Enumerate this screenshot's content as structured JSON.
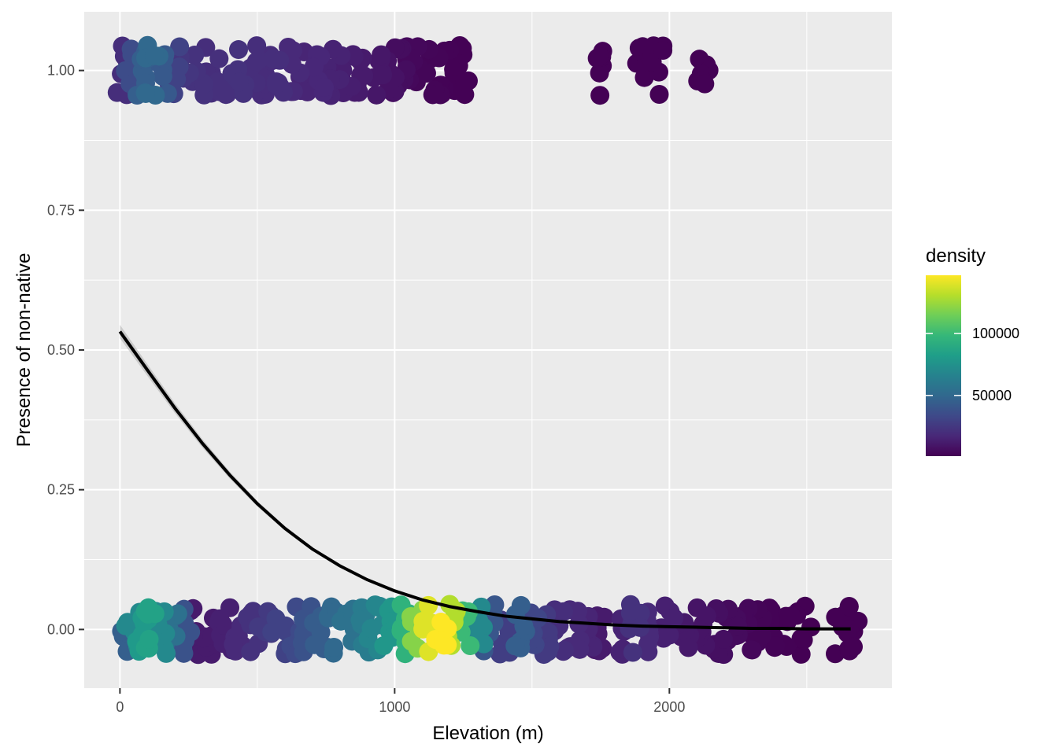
{
  "chart_data": {
    "type": "scatter",
    "title": "",
    "xlabel": "Elevation (m)",
    "ylabel": "Presence of non-native",
    "xlim": [
      -130,
      2810
    ],
    "ylim": [
      -0.105,
      1.105
    ],
    "x_ticks": [
      {
        "value": 0,
        "label": "0"
      },
      {
        "value": 1000,
        "label": "1000"
      },
      {
        "value": 2000,
        "label": "2000"
      }
    ],
    "y_ticks": [
      {
        "value": 0,
        "label": "0.00"
      },
      {
        "value": 0.25,
        "label": "0.25"
      },
      {
        "value": 0.5,
        "label": "0.50"
      },
      {
        "value": 0.75,
        "label": "0.75"
      },
      {
        "value": 1,
        "label": "1.00"
      }
    ],
    "grid": true,
    "legend": {
      "title": "density",
      "position": "right",
      "scale": "viridis",
      "range": [
        1000,
        147000
      ],
      "ticks": [
        {
          "value": 50000,
          "label": "50000"
        },
        {
          "value": 100000,
          "label": "100000"
        }
      ]
    },
    "points_present": [
      {
        "x": 15,
        "density": 20000
      },
      {
        "x": 45,
        "density": 35000
      },
      {
        "x": 80,
        "density": 45000
      },
      {
        "x": 115,
        "density": 50000
      },
      {
        "x": 150,
        "density": 42000
      },
      {
        "x": 190,
        "density": 30000
      },
      {
        "x": 230,
        "density": 24000
      },
      {
        "x": 280,
        "density": 22000
      },
      {
        "x": 330,
        "density": 20000
      },
      {
        "x": 380,
        "density": 21000
      },
      {
        "x": 430,
        "density": 22000
      },
      {
        "x": 480,
        "density": 20000
      },
      {
        "x": 530,
        "density": 19000
      },
      {
        "x": 580,
        "density": 20000
      },
      {
        "x": 630,
        "density": 18000
      },
      {
        "x": 680,
        "density": 16000
      },
      {
        "x": 730,
        "density": 17000
      },
      {
        "x": 780,
        "density": 15000
      },
      {
        "x": 830,
        "density": 13000
      },
      {
        "x": 880,
        "density": 12000
      },
      {
        "x": 930,
        "density": 10000
      },
      {
        "x": 980,
        "density": 8000
      },
      {
        "x": 1020,
        "density": 6000
      },
      {
        "x": 1060,
        "density": 4000
      },
      {
        "x": 1100,
        "density": 3000
      },
      {
        "x": 1140,
        "density": 2500
      },
      {
        "x": 1180,
        "density": 2000
      },
      {
        "x": 1225,
        "density": 1500
      },
      {
        "x": 1250,
        "density": 1500
      },
      {
        "x": 1750,
        "density": 1500
      },
      {
        "x": 1905,
        "density": 1500
      },
      {
        "x": 1950,
        "density": 1500
      },
      {
        "x": 2130,
        "density": 1500
      }
    ],
    "points_absent": [
      {
        "x": 15,
        "density": 45000
      },
      {
        "x": 45,
        "density": 70000
      },
      {
        "x": 80,
        "density": 80000
      },
      {
        "x": 115,
        "density": 85000
      },
      {
        "x": 150,
        "density": 70000
      },
      {
        "x": 190,
        "density": 55000
      },
      {
        "x": 230,
        "density": 38000
      },
      {
        "x": 280,
        "density": 12000
      },
      {
        "x": 330,
        "density": 12000
      },
      {
        "x": 380,
        "density": 14000
      },
      {
        "x": 430,
        "density": 18000
      },
      {
        "x": 480,
        "density": 22000
      },
      {
        "x": 530,
        "density": 26000
      },
      {
        "x": 580,
        "density": 30000
      },
      {
        "x": 630,
        "density": 34000
      },
      {
        "x": 680,
        "density": 38000
      },
      {
        "x": 730,
        "density": 44000
      },
      {
        "x": 780,
        "density": 50000
      },
      {
        "x": 830,
        "density": 56000
      },
      {
        "x": 880,
        "density": 62000
      },
      {
        "x": 930,
        "density": 68000
      },
      {
        "x": 980,
        "density": 78000
      },
      {
        "x": 1030,
        "density": 95000
      },
      {
        "x": 1080,
        "density": 120000
      },
      {
        "x": 1130,
        "density": 140000
      },
      {
        "x": 1170,
        "density": 147000
      },
      {
        "x": 1210,
        "density": 130000
      },
      {
        "x": 1250,
        "density": 100000
      },
      {
        "x": 1300,
        "density": 70000
      },
      {
        "x": 1350,
        "density": 40000
      },
      {
        "x": 1400,
        "density": 28000
      },
      {
        "x": 1450,
        "density": 45000
      },
      {
        "x": 1500,
        "density": 32000
      },
      {
        "x": 1550,
        "density": 26000
      },
      {
        "x": 1600,
        "density": 20000
      },
      {
        "x": 1650,
        "density": 18000
      },
      {
        "x": 1700,
        "density": 16000
      },
      {
        "x": 1750,
        "density": 12000
      },
      {
        "x": 1810,
        "density": 15000
      },
      {
        "x": 1870,
        "density": 22000
      },
      {
        "x": 1930,
        "density": 18000
      },
      {
        "x": 1990,
        "density": 14000
      },
      {
        "x": 2050,
        "density": 11000
      },
      {
        "x": 2110,
        "density": 9000
      },
      {
        "x": 2170,
        "density": 7000
      },
      {
        "x": 2230,
        "density": 5000
      },
      {
        "x": 2280,
        "density": 3500
      },
      {
        "x": 2320,
        "density": 2500
      },
      {
        "x": 2370,
        "density": 2000
      },
      {
        "x": 2420,
        "density": 1500
      },
      {
        "x": 2490,
        "density": 1200
      },
      {
        "x": 2630,
        "density": 1000
      },
      {
        "x": 2660,
        "density": 1000
      }
    ],
    "fit_line": {
      "x": [
        0,
        100,
        200,
        300,
        400,
        500,
        600,
        700,
        800,
        900,
        1000,
        1100,
        1200,
        1300,
        1400,
        1500,
        1600,
        1700,
        1800,
        1900,
        2000,
        2100,
        2200,
        2300,
        2400,
        2500,
        2600,
        2660
      ],
      "y": [
        0.533,
        0.464,
        0.396,
        0.333,
        0.276,
        0.225,
        0.181,
        0.144,
        0.114,
        0.089,
        0.069,
        0.053,
        0.041,
        0.032,
        0.024,
        0.019,
        0.014,
        0.011,
        0.008,
        0.006,
        0.005,
        0.004,
        0.003,
        0.002,
        0.002,
        0.001,
        0.001,
        0.001
      ]
    }
  }
}
